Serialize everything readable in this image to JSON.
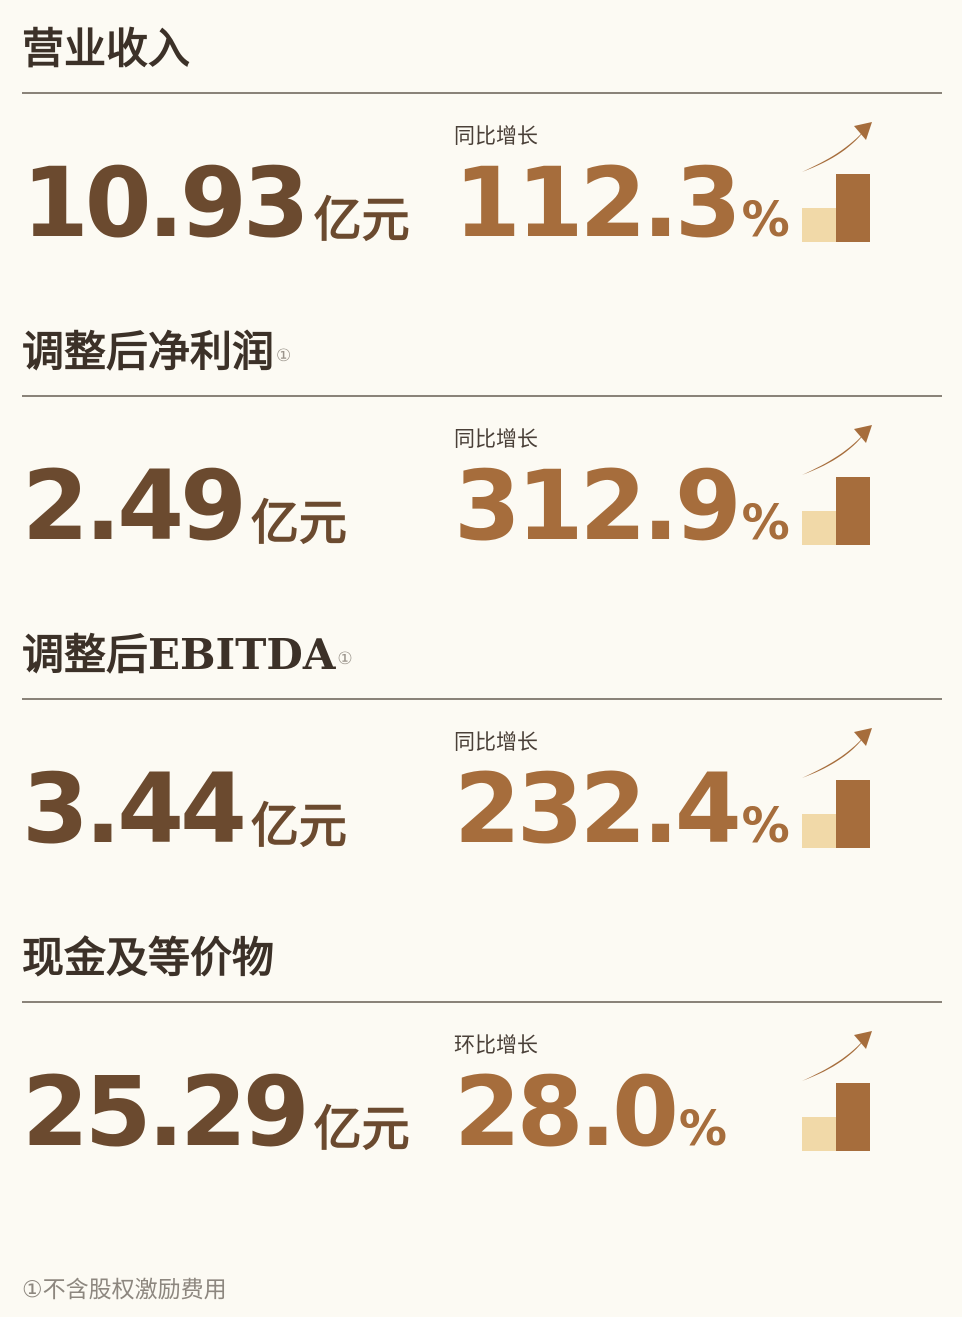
{
  "colors": {
    "background": "#fcfaf3",
    "title": "#3c3128",
    "value": "#6b4a2f",
    "growth": "#a66d3c",
    "bar_light": "#f1d9a8",
    "bar_dark": "#a66d3c"
  },
  "metrics": [
    {
      "title": "营业收入",
      "note": "",
      "value": "10.93",
      "unit": "亿元",
      "caption": "同比增长",
      "growth": "112.3",
      "pct": "%"
    },
    {
      "title": "调整后净利润",
      "note": "①",
      "value": "2.49",
      "unit": "亿元",
      "caption": "同比增长",
      "growth": "312.9",
      "pct": "%"
    },
    {
      "title": "调整后EBITDA",
      "note": "①",
      "value": "3.44",
      "unit": "亿元",
      "caption": "同比增长",
      "growth": "232.4",
      "pct": "%"
    },
    {
      "title": "现金及等价物",
      "note": "",
      "value": "25.29",
      "unit": "亿元",
      "caption": "环比增长",
      "growth": "28.0",
      "pct": "%"
    }
  ],
  "icon": "growth-bars-arrow-icon",
  "footnote": "①不含股权激励费用"
}
